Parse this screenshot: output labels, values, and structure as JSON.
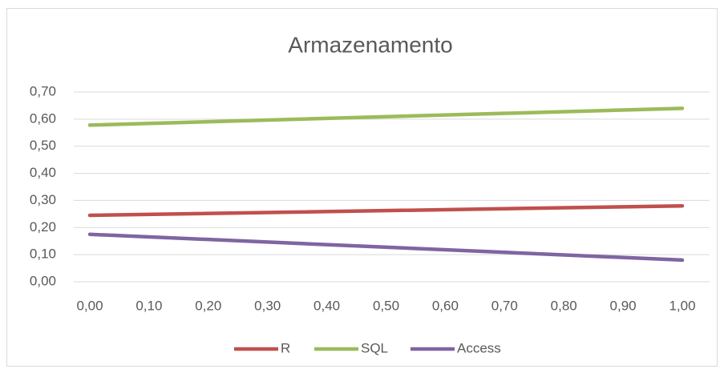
{
  "chart_data": {
    "type": "line",
    "title": "Armazenamento",
    "x": [
      0,
      1
    ],
    "series": [
      {
        "name": "R",
        "color": "#c0504d",
        "values": [
          0.245,
          0.28
        ]
      },
      {
        "name": "SQL",
        "color": "#9bbb59",
        "values": [
          0.578,
          0.64
        ]
      },
      {
        "name": "Access",
        "color": "#8064a2",
        "values": [
          0.175,
          0.08
        ]
      }
    ],
    "xlim": [
      0,
      1
    ],
    "xticks": [
      {
        "value": 0,
        "label": "0,00"
      },
      {
        "value": 0.1,
        "label": "0,10"
      },
      {
        "value": 0.2,
        "label": "0,20"
      },
      {
        "value": 0.3,
        "label": "0,30"
      },
      {
        "value": 0.4,
        "label": "0,40"
      },
      {
        "value": 0.5,
        "label": "0,50"
      },
      {
        "value": 0.6,
        "label": "0,60"
      },
      {
        "value": 0.7,
        "label": "0,70"
      },
      {
        "value": 0.8,
        "label": "0,80"
      },
      {
        "value": 0.9,
        "label": "0,90"
      },
      {
        "value": 1,
        "label": "1,00"
      }
    ],
    "ylim": [
      0,
      0.7
    ],
    "yticks": [
      {
        "value": 0,
        "label": "0,00"
      },
      {
        "value": 0.1,
        "label": "0,10"
      },
      {
        "value": 0.2,
        "label": "0,20"
      },
      {
        "value": 0.3,
        "label": "0,30"
      },
      {
        "value": 0.4,
        "label": "0,40"
      },
      {
        "value": 0.5,
        "label": "0,50"
      },
      {
        "value": 0.6,
        "label": "0,60"
      },
      {
        "value": 0.7,
        "label": "0,70"
      }
    ],
    "grid": true,
    "legend": "bottom"
  }
}
